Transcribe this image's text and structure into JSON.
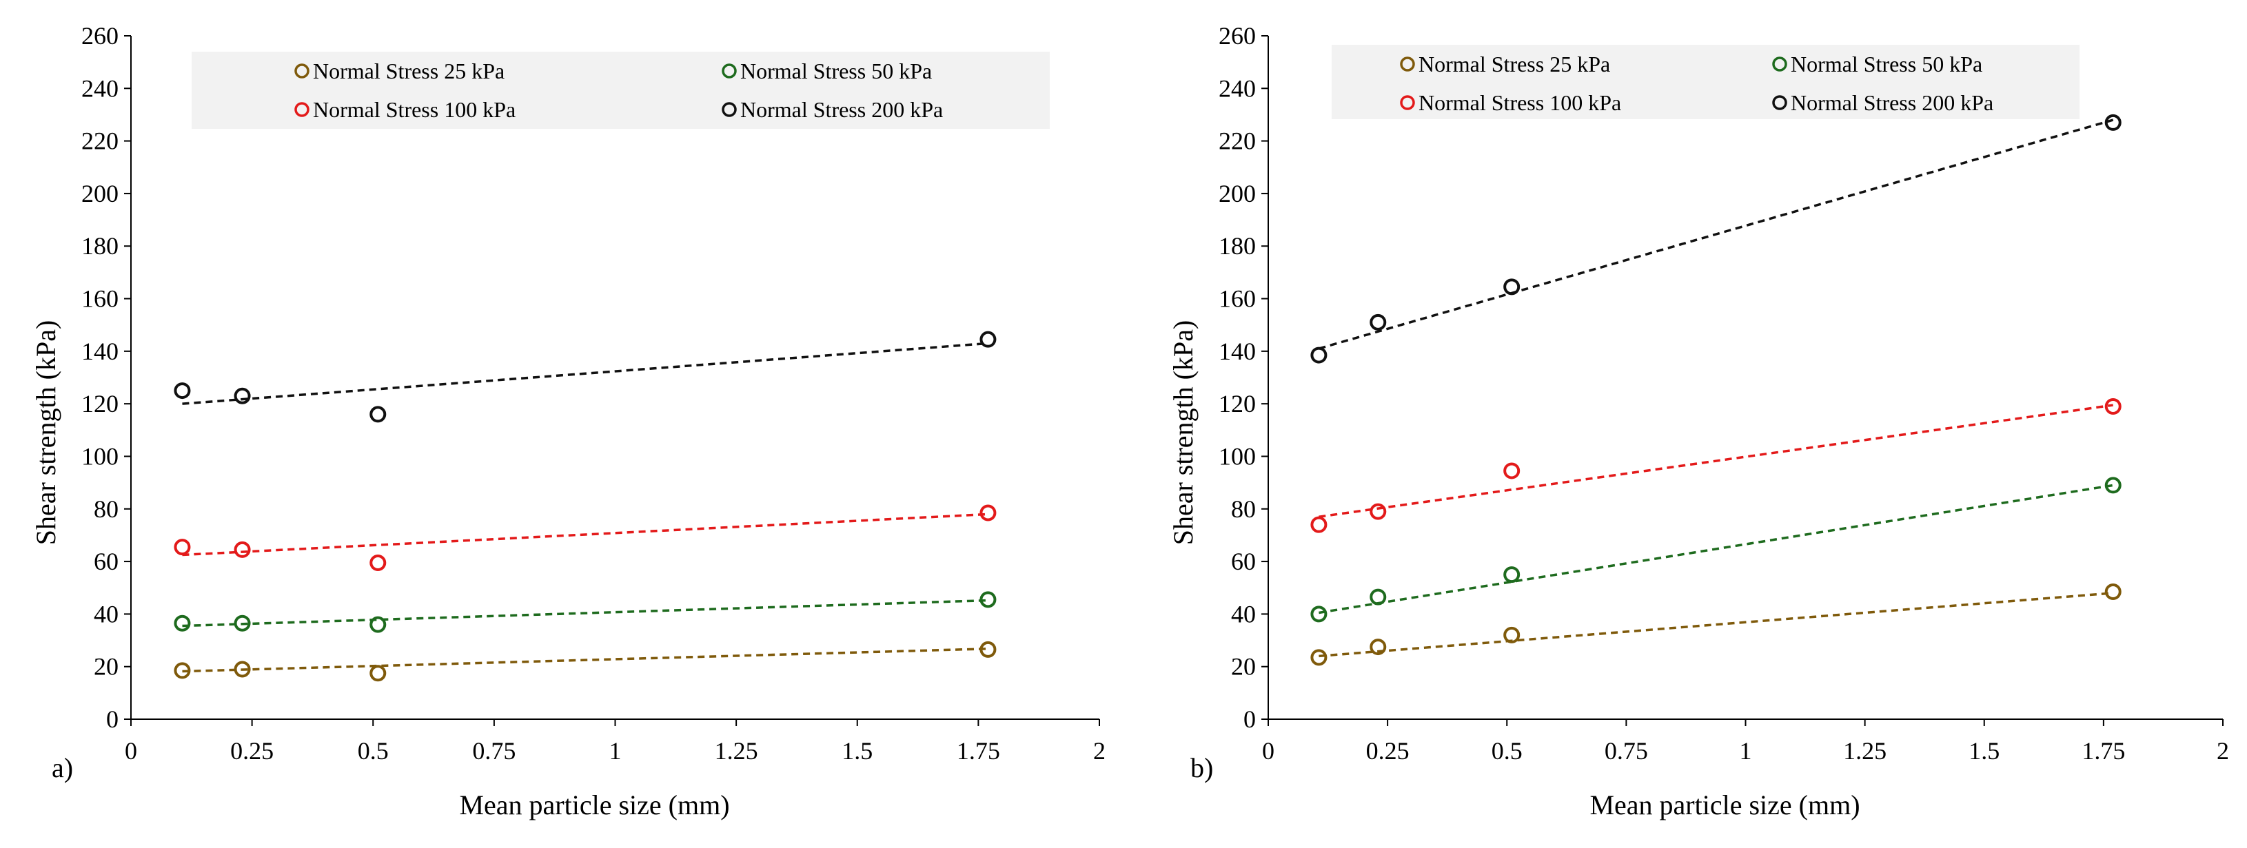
{
  "colors": {
    "ns25": "#7f5a0b",
    "ns50": "#1e6b1e",
    "ns100": "#e31a1a",
    "ns200": "#111111",
    "legend_bg": "#f2f2f2"
  },
  "chart_data": [
    {
      "type": "scatter",
      "panel_label": "a)",
      "xlabel": "Mean particle size (mm)",
      "ylabel": "Shear strength (kPa)",
      "xlim": [
        0,
        2
      ],
      "ylim": [
        0,
        260
      ],
      "xticks": [
        0,
        0.25,
        0.5,
        0.75,
        1,
        1.25,
        1.5,
        1.75,
        2
      ],
      "xtick_labels": [
        "0",
        "0.25",
        "0.5",
        "0.75",
        "1",
        "1.25",
        "1.5",
        "1.75",
        "2"
      ],
      "yticks": [
        0,
        20,
        40,
        60,
        80,
        100,
        120,
        140,
        160,
        180,
        200,
        220,
        240,
        260
      ],
      "ytick_labels": [
        "0",
        "20",
        "40",
        "60",
        "80",
        "100",
        "120",
        "140",
        "160",
        "180",
        "200",
        "220",
        "240",
        "260"
      ],
      "grid": false,
      "legend_position": "top",
      "series": [
        {
          "key": "ns25",
          "name": "Normal Stress 25 kPa",
          "x": [
            0.106,
            0.23,
            0.51,
            1.77
          ],
          "values": [
            18.5,
            19,
            17.5,
            26.5
          ],
          "trend": {
            "x": [
              0.106,
              1.77
            ],
            "y": [
              18.2,
              26.8
            ]
          }
        },
        {
          "key": "ns50",
          "name": "Normal Stress 50 kPa",
          "x": [
            0.106,
            0.23,
            0.51,
            1.77
          ],
          "values": [
            36.5,
            36.5,
            36,
            45.5
          ],
          "trend": {
            "x": [
              0.106,
              1.77
            ],
            "y": [
              35.5,
              45.2
            ]
          }
        },
        {
          "key": "ns100",
          "name": "Normal Stress 100 kPa",
          "x": [
            0.106,
            0.23,
            0.51,
            1.77
          ],
          "values": [
            65.5,
            64.5,
            59.5,
            78.5
          ],
          "trend": {
            "x": [
              0.106,
              1.77
            ],
            "y": [
              62.5,
              78
            ]
          }
        },
        {
          "key": "ns200",
          "name": "Normal Stress 200 kPa",
          "x": [
            0.106,
            0.23,
            0.51,
            1.77
          ],
          "values": [
            125,
            123,
            116,
            144.5
          ],
          "trend": {
            "x": [
              0.106,
              1.77
            ],
            "y": [
              120,
              143
            ]
          }
        }
      ]
    },
    {
      "type": "scatter",
      "panel_label": "b)",
      "xlabel": "Mean particle size (mm)",
      "ylabel": "Shear strength (kPa)",
      "xlim": [
        0,
        2
      ],
      "ylim": [
        0,
        260
      ],
      "xticks": [
        0,
        0.25,
        0.5,
        0.75,
        1,
        1.25,
        1.5,
        1.75,
        2
      ],
      "xtick_labels": [
        "0",
        "0.25",
        "0.5",
        "0.75",
        "1",
        "1.25",
        "1.5",
        "1.75",
        "2"
      ],
      "yticks": [
        0,
        20,
        40,
        60,
        80,
        100,
        120,
        140,
        160,
        180,
        200,
        220,
        240,
        260
      ],
      "ytick_labels": [
        "0",
        "20",
        "40",
        "60",
        "80",
        "100",
        "120",
        "140",
        "160",
        "180",
        "200",
        "220",
        "240",
        "260"
      ],
      "grid": false,
      "legend_position": "top",
      "series": [
        {
          "key": "ns25",
          "name": "Normal Stress 25 kPa",
          "x": [
            0.106,
            0.23,
            0.51,
            1.77
          ],
          "values": [
            23.5,
            27.5,
            32,
            48.5
          ],
          "trend": {
            "x": [
              0.106,
              1.77
            ],
            "y": [
              24,
              48
            ]
          }
        },
        {
          "key": "ns50",
          "name": "Normal Stress 50 kPa",
          "x": [
            0.106,
            0.23,
            0.51,
            1.77
          ],
          "values": [
            40,
            46.5,
            55,
            89
          ],
          "trend": {
            "x": [
              0.106,
              1.77
            ],
            "y": [
              40.5,
              89
            ]
          }
        },
        {
          "key": "ns100",
          "name": "Normal Stress 100 kPa",
          "x": [
            0.106,
            0.23,
            0.51,
            1.77
          ],
          "values": [
            74,
            79,
            94.5,
            119
          ],
          "trend": {
            "x": [
              0.106,
              1.77
            ],
            "y": [
              77,
              119.5
            ]
          }
        },
        {
          "key": "ns200",
          "name": "Normal Stress 200 kPa",
          "x": [
            0.106,
            0.23,
            0.51,
            1.77
          ],
          "values": [
            138.5,
            151,
            164.5,
            227
          ],
          "trend": {
            "x": [
              0.106,
              1.77
            ],
            "y": [
              141,
              228
            ]
          }
        }
      ]
    }
  ]
}
